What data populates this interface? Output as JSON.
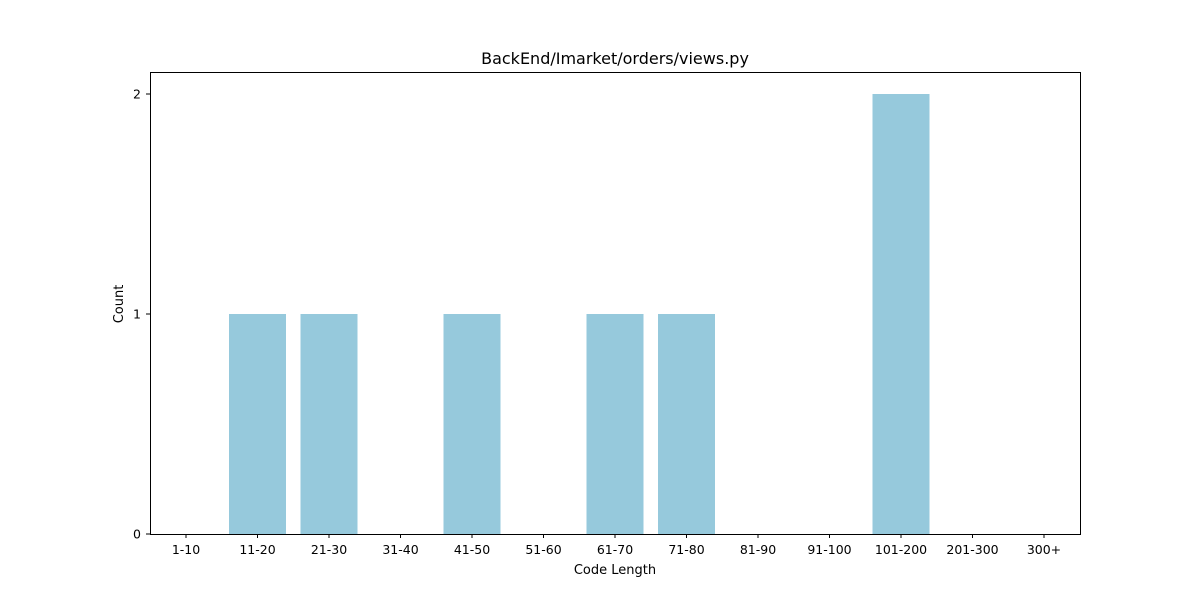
{
  "chart_data": {
    "type": "bar",
    "title": "BackEnd/Imarket/orders/views.py",
    "xlabel": "Code Length",
    "ylabel": "Count",
    "categories": [
      "1-10",
      "11-20",
      "21-30",
      "31-40",
      "41-50",
      "51-60",
      "61-70",
      "71-80",
      "81-90",
      "91-100",
      "101-200",
      "201-300",
      "300+"
    ],
    "values": [
      0,
      1,
      1,
      0,
      1,
      0,
      1,
      1,
      0,
      0,
      2,
      0,
      0
    ],
    "yticks": [
      0,
      1,
      2
    ],
    "ylim": [
      0,
      2.1
    ],
    "bar_color": "#96c9dc",
    "grid": false,
    "legend": "none"
  }
}
